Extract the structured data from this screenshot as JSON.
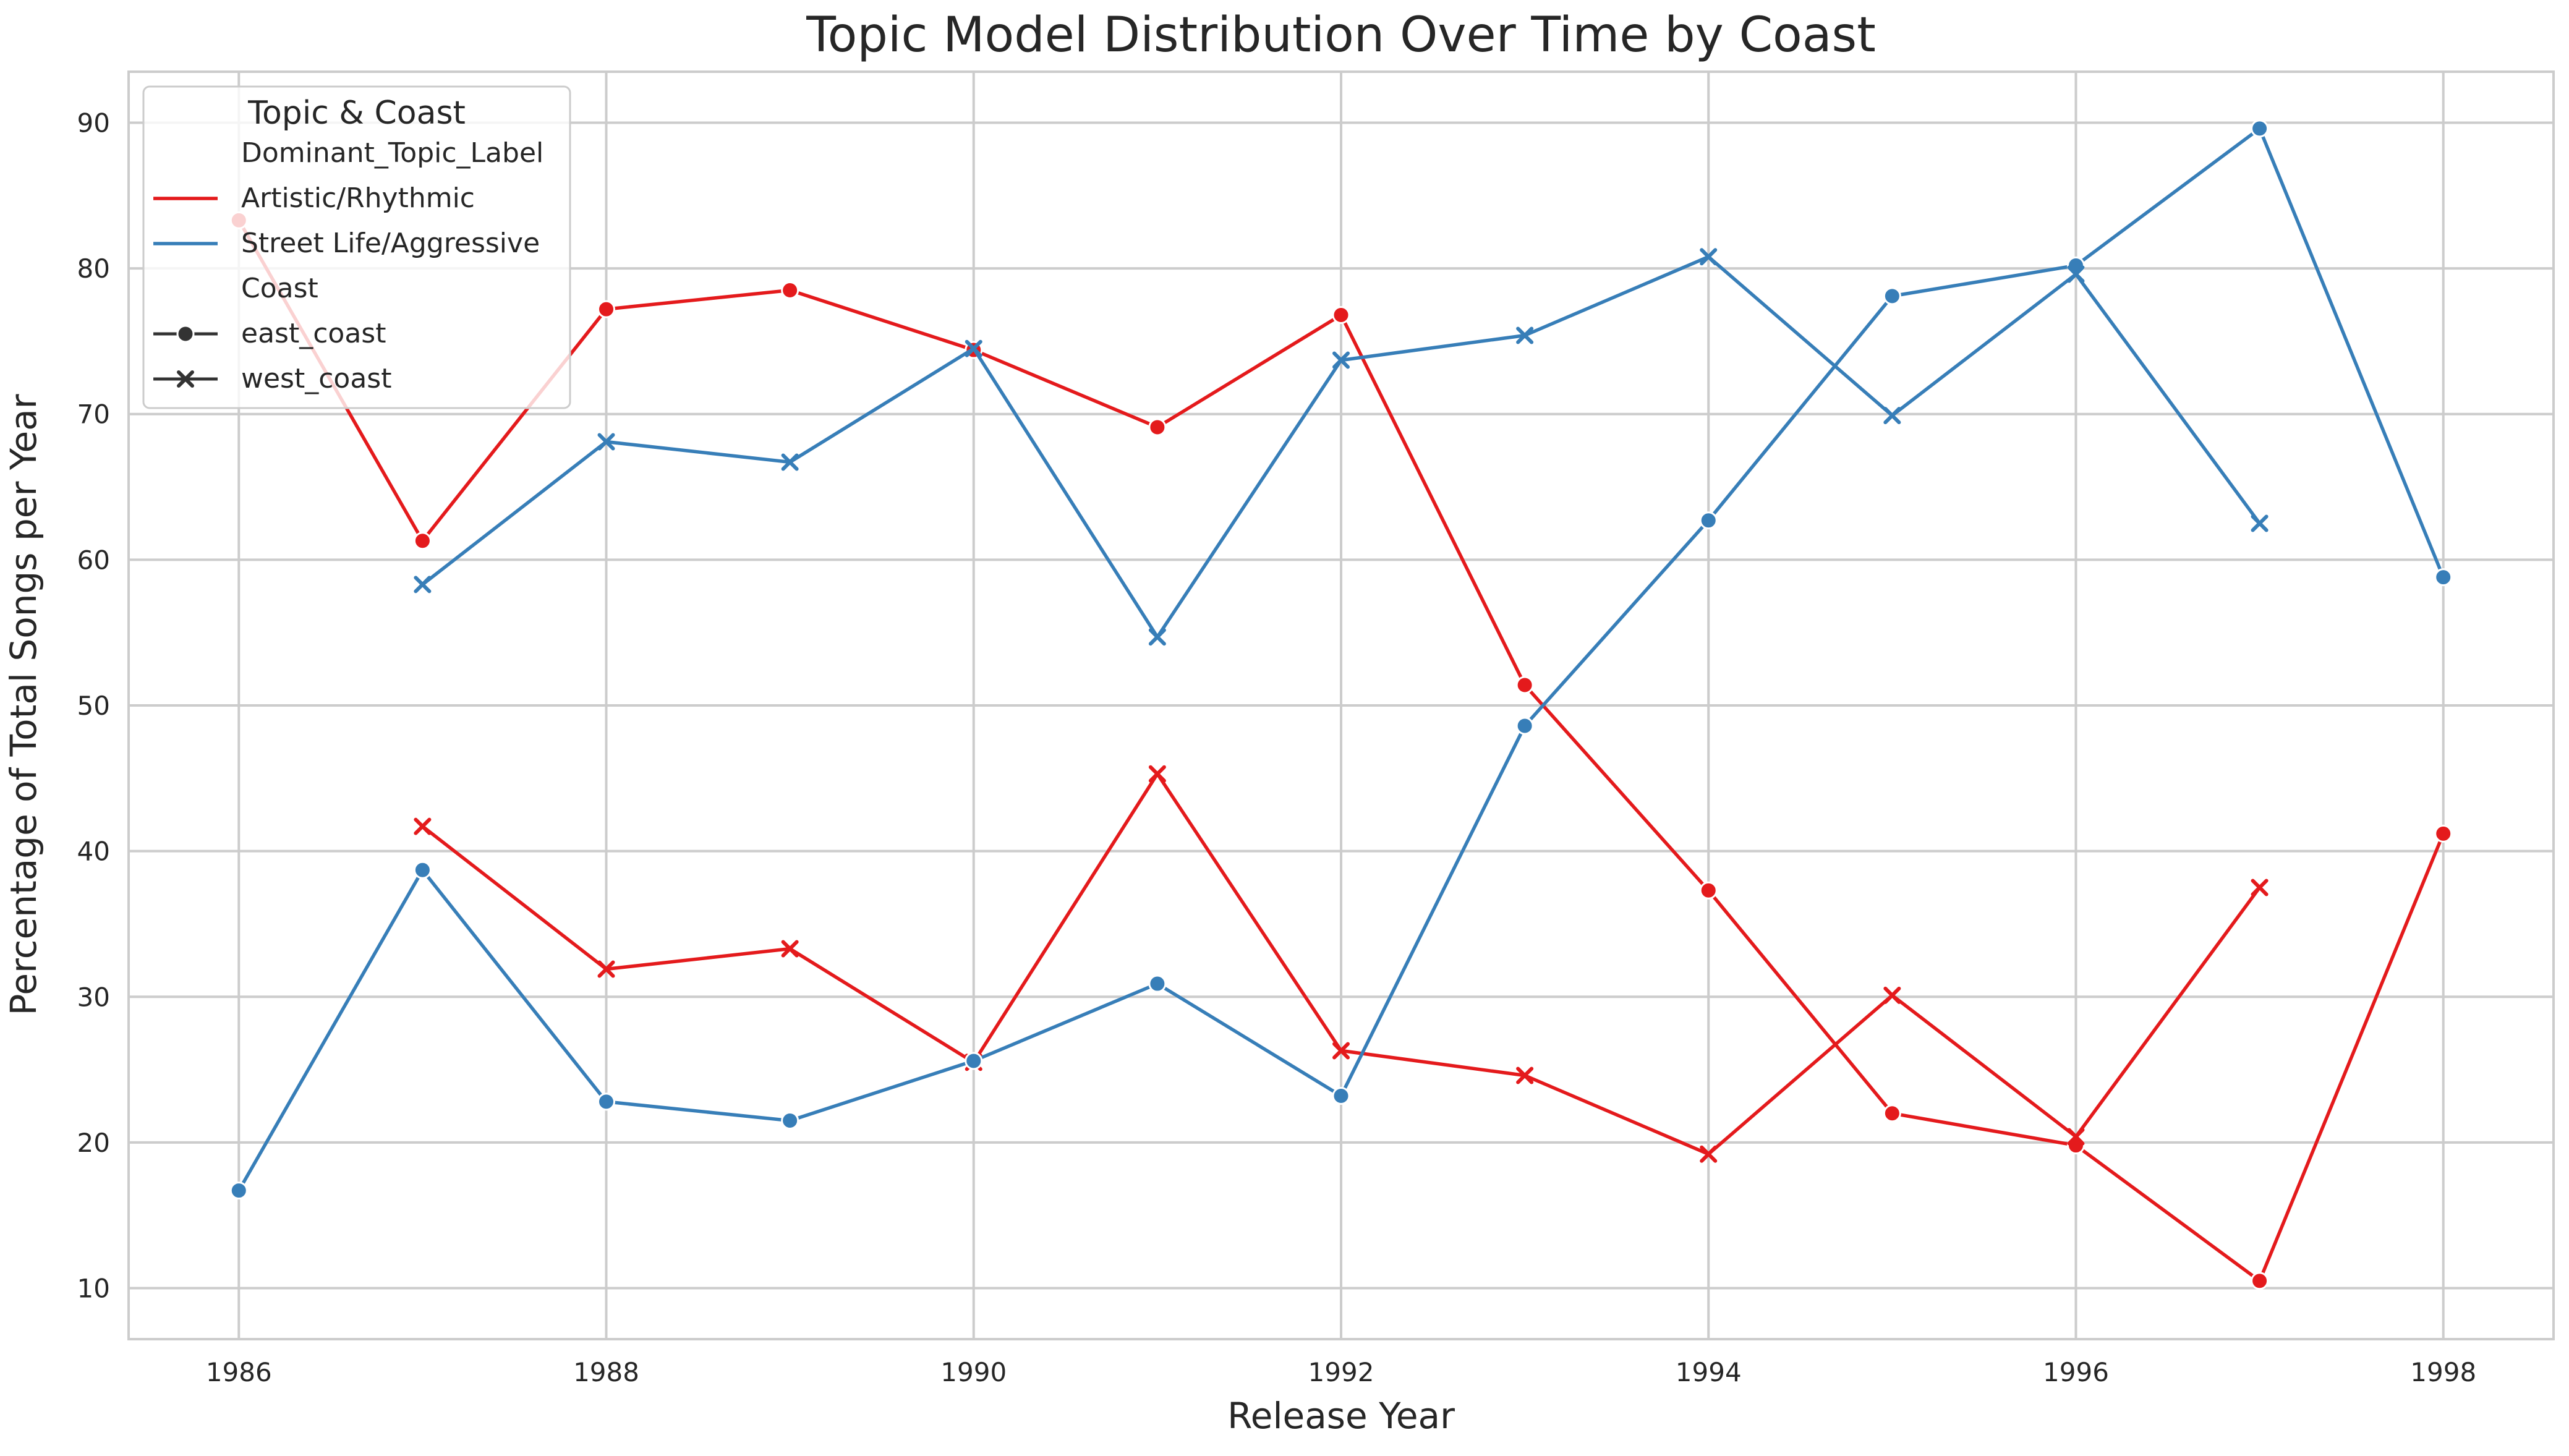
{
  "chart_data": {
    "type": "line",
    "title": "Topic Model Distribution Over Time by Coast",
    "xlabel": "Release Year",
    "ylabel": "Percentage of Total Songs per Year",
    "xlim": [
      1985.4,
      1998.6
    ],
    "ylim": [
      6.5,
      93.5
    ],
    "xticks": [
      1986,
      1988,
      1990,
      1992,
      1994,
      1996,
      1998
    ],
    "yticks": [
      10,
      20,
      30,
      40,
      50,
      60,
      70,
      80,
      90
    ],
    "grid": true,
    "legend": {
      "title": "Topic & Coast",
      "placement": "upper-left",
      "hue_title": "Dominant_Topic_Label",
      "style_title": "Coast",
      "hue_entries": [
        {
          "label": "Artistic/Rhythmic",
          "color": "#e41a1c"
        },
        {
          "label": "Street Life/Aggressive",
          "color": "#377eb8"
        }
      ],
      "style_entries": [
        {
          "label": "east_coast",
          "marker": "circle"
        },
        {
          "label": "west_coast",
          "marker": "x"
        }
      ]
    },
    "series": [
      {
        "topic": "Artistic/Rhythmic",
        "coast": "east_coast",
        "color": "#e41a1c",
        "marker": "circle",
        "x": [
          1986,
          1987,
          1988,
          1989,
          1990,
          1991,
          1992,
          1993,
          1994,
          1995,
          1996,
          1997,
          1998
        ],
        "y": [
          83.3,
          61.3,
          77.2,
          78.5,
          74.4,
          69.1,
          76.8,
          51.4,
          37.3,
          22.0,
          19.8,
          10.5,
          41.2
        ]
      },
      {
        "topic": "Artistic/Rhythmic",
        "coast": "west_coast",
        "color": "#e41a1c",
        "marker": "x",
        "x": [
          1987,
          1988,
          1989,
          1990,
          1991,
          1992,
          1993,
          1994,
          1995,
          1996,
          1997
        ],
        "y": [
          41.7,
          31.9,
          33.3,
          25.5,
          45.3,
          26.3,
          24.6,
          19.2,
          30.1,
          20.4,
          37.5
        ]
      },
      {
        "topic": "Street Life/Aggressive",
        "coast": "east_coast",
        "color": "#377eb8",
        "marker": "circle",
        "x": [
          1986,
          1987,
          1988,
          1989,
          1990,
          1991,
          1992,
          1993,
          1994,
          1995,
          1996,
          1997,
          1998
        ],
        "y": [
          16.7,
          38.7,
          22.8,
          21.5,
          25.6,
          30.9,
          23.2,
          48.6,
          62.7,
          78.1,
          80.2,
          89.6,
          58.8
        ]
      },
      {
        "topic": "Street Life/Aggressive",
        "coast": "west_coast",
        "color": "#377eb8",
        "marker": "x",
        "x": [
          1987,
          1988,
          1989,
          1990,
          1991,
          1992,
          1993,
          1994,
          1995,
          1996,
          1997
        ],
        "y": [
          58.3,
          68.1,
          66.7,
          74.5,
          54.7,
          73.7,
          75.4,
          80.8,
          69.9,
          79.6,
          62.5
        ]
      }
    ]
  }
}
